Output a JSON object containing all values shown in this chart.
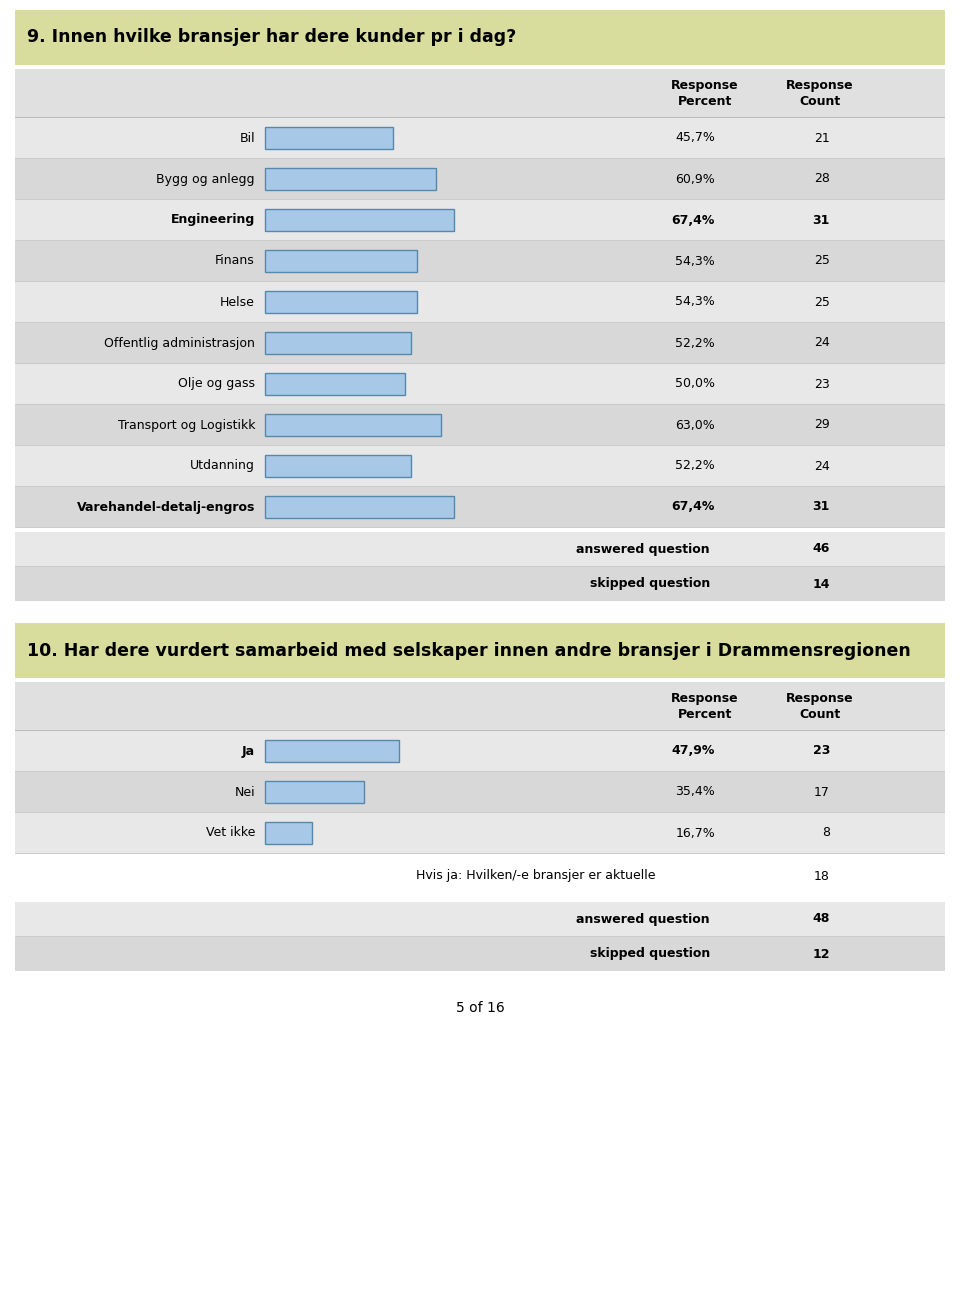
{
  "q9_title": "9. Innen hvilke bransjer har dere kunder pr i dag?",
  "q9_categories": [
    "Bil",
    "Bygg og anlegg",
    "Engineering",
    "Finans",
    "Helse",
    "Offentlig administrasjon",
    "Olje og gass",
    "Transport og Logistikk",
    "Utdanning",
    "Varehandel-detalj-engros"
  ],
  "q9_bold": [
    false,
    false,
    true,
    false,
    false,
    false,
    false,
    false,
    false,
    true
  ],
  "q9_percents": [
    45.7,
    60.9,
    67.4,
    54.3,
    54.3,
    52.2,
    50.0,
    63.0,
    52.2,
    67.4
  ],
  "q9_percent_labels": [
    "45,7%",
    "60,9%",
    "67,4%",
    "54,3%",
    "54,3%",
    "52,2%",
    "50,0%",
    "63,0%",
    "52,2%",
    "67,4%"
  ],
  "q9_counts": [
    21,
    28,
    31,
    25,
    25,
    24,
    23,
    29,
    24,
    31
  ],
  "q9_answered": 46,
  "q9_skipped": 14,
  "q10_title": "10. Har dere vurdert samarbeid med selskaper innen andre bransjer i Drammensregionen",
  "q10_categories": [
    "Ja",
    "Nei",
    "Vet ikke"
  ],
  "q10_bold": [
    true,
    false,
    false
  ],
  "q10_percents": [
    47.9,
    35.4,
    16.7
  ],
  "q10_percent_labels": [
    "47,9%",
    "35,4%",
    "16,7%"
  ],
  "q10_counts": [
    23,
    17,
    8
  ],
  "q10_subtext": "Hvis ja: Hvilken/-e bransjer er aktuelle",
  "q10_subtext_count": 18,
  "q10_answered": 48,
  "q10_skipped": 12,
  "bar_color_face": "#a8c8e8",
  "bar_color_edge": "#5588aa",
  "title_bg": "#d8dc9c",
  "row_bg_even": "#e8e8e8",
  "row_bg_odd": "#d8d8d8",
  "header_row_bg": "#e0e0e0",
  "footer_row_ans_bg": "#e8e8e8",
  "footer_row_skip_bg": "#d8d8d8",
  "white": "#ffffff",
  "page_footer": "5 of 16"
}
